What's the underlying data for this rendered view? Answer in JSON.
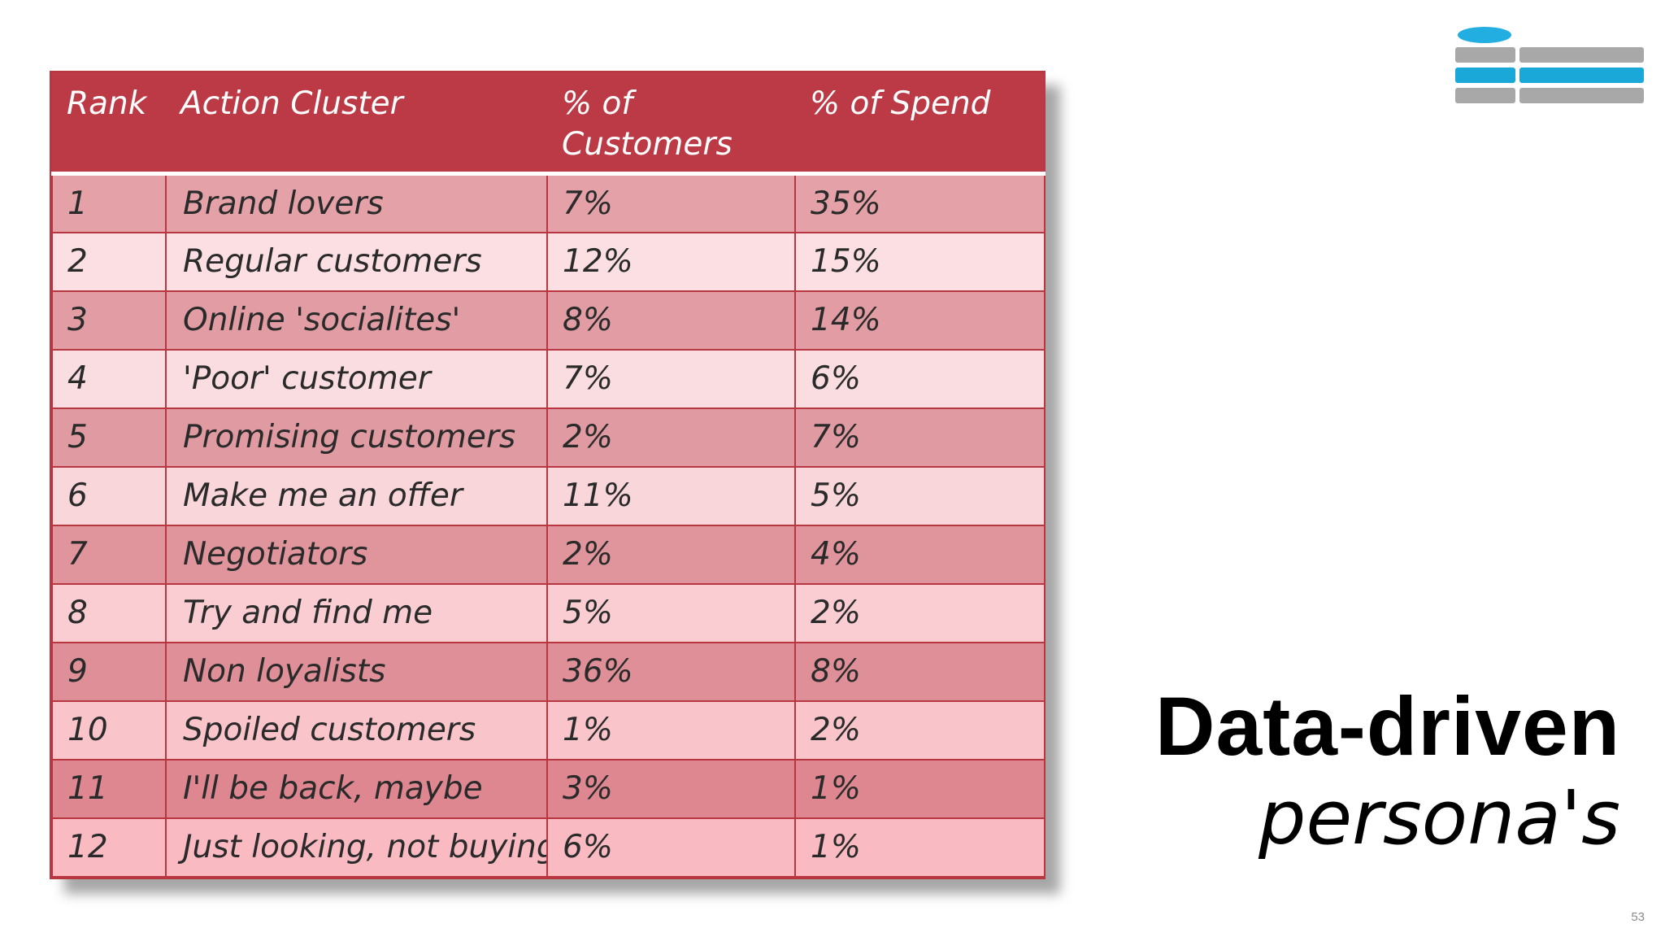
{
  "table": {
    "headers": [
      "Rank",
      "Action Cluster",
      "% of Customers",
      "% of Spend"
    ],
    "row_colors": [
      "#e4a2a8",
      "#fbdfe2",
      "#e19da3",
      "#fadde0",
      "#e09aa1",
      "#f9d6da",
      "#e0959c",
      "#f9cdd2",
      "#df8f97",
      "#f9c4ca",
      "#df8790",
      "#f9bac2"
    ],
    "rows": [
      {
        "rank": "1",
        "cluster": "Brand lovers",
        "customers": "7%",
        "spend": "35%"
      },
      {
        "rank": "2",
        "cluster": "Regular customers",
        "customers": "12%",
        "spend": "15%"
      },
      {
        "rank": "3",
        "cluster": "Online 'socialites'",
        "customers": "8%",
        "spend": "14%"
      },
      {
        "rank": "4",
        "cluster": "'Poor' customer",
        "customers": "7%",
        "spend": "6%"
      },
      {
        "rank": "5",
        "cluster": "Promising customers",
        "customers": "2%",
        "spend": "7%"
      },
      {
        "rank": "6",
        "cluster": "Make me an offer",
        "customers": "11%",
        "spend": "5%"
      },
      {
        "rank": "7",
        "cluster": "Negotiators",
        "customers": "2%",
        "spend": "4%"
      },
      {
        "rank": "8",
        "cluster": "Try and find me",
        "customers": "5%",
        "spend": "2%"
      },
      {
        "rank": "9",
        "cluster": "Non loyalists",
        "customers": "36%",
        "spend": "8%"
      },
      {
        "rank": "10",
        "cluster": "Spoiled customers",
        "customers": "1%",
        "spend": "2%"
      },
      {
        "rank": "11",
        "cluster": "I'll be back, maybe",
        "customers": "3%",
        "spend": "1%"
      },
      {
        "rank": "12",
        "cluster": "Just looking, not buying",
        "customers": "6%",
        "spend": "1%"
      }
    ]
  },
  "title": {
    "main": "Data-driven",
    "sub": "persona's"
  },
  "page_number": "53",
  "mini_nav": {
    "active_color": "#1aa8d8",
    "inactive_color": "#a8a8a8"
  }
}
